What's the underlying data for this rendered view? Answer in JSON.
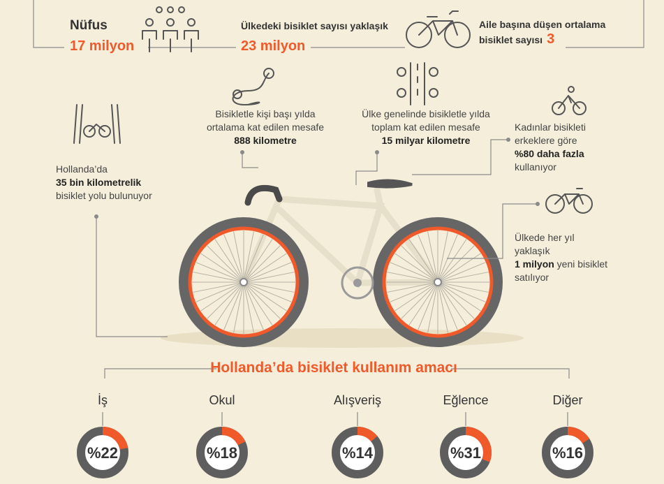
{
  "header": [
    {
      "lines": [
        [
          {
            "text": "Nüfus",
            "highlight": false
          }
        ],
        [
          {
            "text": "17 milyon",
            "highlight": true
          }
        ]
      ]
    },
    {
      "lines": [
        [
          {
            "text": "Ülkedeki bisiklet sayısı yaklaşık",
            "highlight": false
          }
        ],
        [
          {
            "text": "23 milyon",
            "highlight": true
          }
        ]
      ]
    },
    {
      "lines": [
        [
          {
            "text": "Aile başına düşen ortalama",
            "highlight": false
          }
        ],
        [
          {
            "text": "bisiklet sayısı",
            "highlight": false
          },
          {
            "text": "3",
            "highlight": true
          }
        ]
      ]
    }
  ],
  "facts": [
    {
      "lines": [
        [
          {
            "text": "Hollanda’da",
            "bold": false
          }
        ],
        [
          {
            "text": "35 bin kilometrelik",
            "bold": true
          }
        ],
        [
          {
            "text": "bisiklet yolu bulunuyor",
            "bold": false
          }
        ]
      ]
    },
    {
      "lines": [
        [
          {
            "text": "Bisikletle kişi başı yılda",
            "bold": false
          }
        ],
        [
          {
            "text": "ortalama kat edilen mesafe",
            "bold": false
          }
        ],
        [
          {
            "text": "888 kilometre",
            "bold": true
          }
        ]
      ]
    },
    {
      "lines": [
        [
          {
            "text": "Ülke genelinde bisikletle yılda",
            "bold": false
          }
        ],
        [
          {
            "text": "toplam kat edilen mesafe",
            "bold": false
          }
        ],
        [
          {
            "text": "15 milyar kilometre",
            "bold": true
          }
        ]
      ]
    },
    {
      "lines": [
        [
          {
            "text": "Kadınlar bisikleti",
            "bold": false
          }
        ],
        [
          {
            "text": "erkeklere göre",
            "bold": false
          }
        ],
        [
          {
            "text": "%80 daha fazla",
            "bold": true
          }
        ],
        [
          {
            "text": "kullanıyor",
            "bold": false
          }
        ]
      ]
    },
    {
      "lines": [
        [
          {
            "text": "Ülkede her yıl",
            "bold": false
          }
        ],
        [
          {
            "text": "yaklaşık",
            "bold": false
          }
        ],
        [
          {
            "text": "1 milyon",
            "bold": true
          },
          {
            "text": " yeni bisiklet",
            "bold": false
          }
        ],
        [
          {
            "text": "satılıyor",
            "bold": false
          }
        ]
      ]
    }
  ],
  "purpose": {
    "title": "Hollanda’da bisiklet kullanım amacı",
    "items": [
      {
        "name": "İş",
        "value": 22,
        "label": "%22"
      },
      {
        "name": "Okul",
        "value": 18,
        "label": "%18"
      },
      {
        "name": "Alışveriş",
        "value": 14,
        "label": "%14"
      },
      {
        "name": "Eğlence",
        "value": 31,
        "label": "%31"
      },
      {
        "name": "Diğer",
        "value": 16,
        "label": "%16"
      }
    ],
    "color": "#f05a2a",
    "rest_color": "#5e5e5e"
  }
}
